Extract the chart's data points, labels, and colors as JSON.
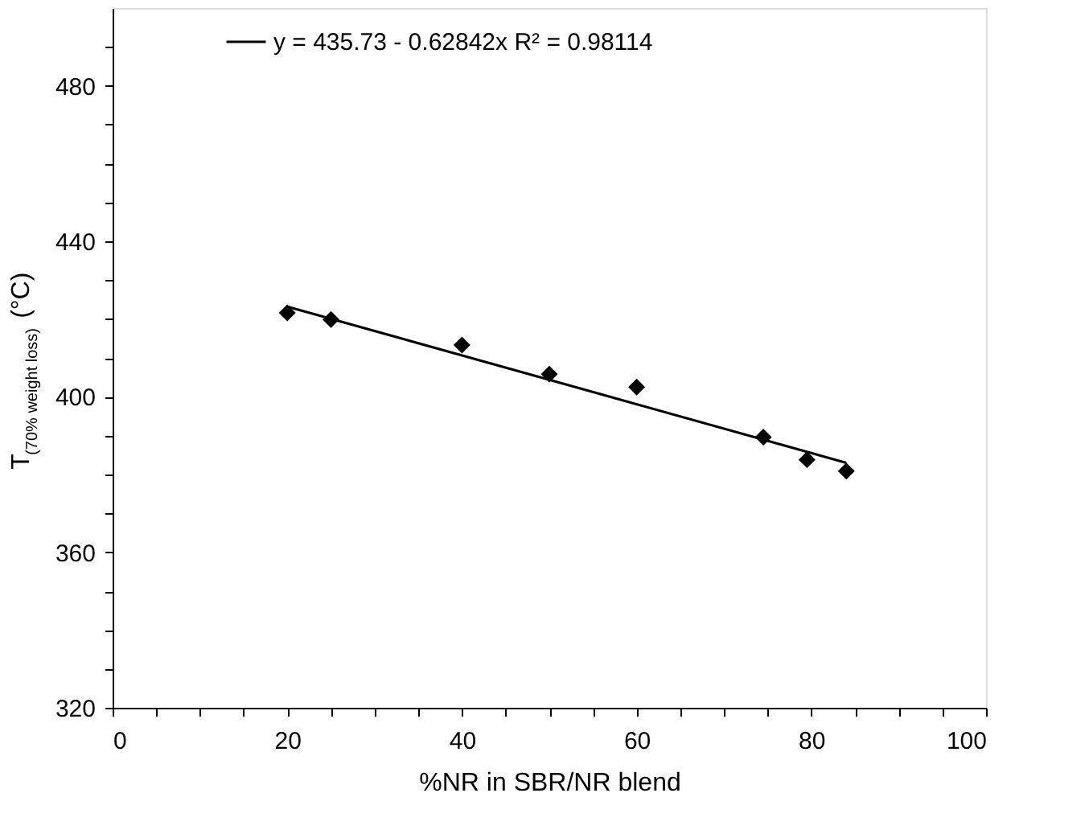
{
  "chart_data": {
    "type": "scatter",
    "xlabel": "%NR in SBR/NR blend",
    "ylabel": "T$_{(70% weight loss)}$ (°C)",
    "x": [
      20,
      25,
      40,
      50,
      60,
      74.5,
      79.5,
      84
    ],
    "series": [
      {
        "color": "#000000",
        "marker": "diamond",
        "values": [
          421.6,
          419.9,
          413.3,
          405.8,
          402.5,
          389.6,
          383.8,
          380.9
        ]
      },
      {
        "type": "line",
        "name": "y = 435.73 - 0.62842x   R² = 0.98114",
        "color": "#000000",
        "line_style": "solid",
        "x": [
          20,
          84
        ],
        "values": [
          423.2,
          383.0
        ]
      }
    ],
    "xlim": [
      0,
      100
    ],
    "xticks": [
      0,
      {
        "value": 5,
        "label": null
      },
      {
        "value": 10,
        "label": null
      },
      {
        "value": 15,
        "label": null
      },
      20,
      {
        "value": 25,
        "label": null
      },
      {
        "value": 30,
        "label": null
      },
      {
        "value": 35,
        "label": null
      },
      40,
      {
        "value": 45,
        "label": null
      },
      {
        "value": 50,
        "label": null
      },
      {
        "value": 55,
        "label": null
      },
      60,
      {
        "value": 65,
        "label": null
      },
      {
        "value": 70,
        "label": null
      },
      {
        "value": 75,
        "label": null
      },
      80,
      {
        "value": 85,
        "label": null
      },
      {
        "value": 90,
        "label": null
      },
      {
        "value": 95,
        "label": null
      },
      100
    ],
    "ylim": [
      320,
      500
    ],
    "yticks": [
      320,
      {
        "value": 330,
        "label": null
      },
      {
        "value": 340,
        "label": null
      },
      {
        "value": 350,
        "label": null
      },
      360,
      {
        "value": 370,
        "label": null
      },
      {
        "value": 380,
        "label": null
      },
      {
        "value": 390,
        "label": null
      },
      400,
      {
        "value": 410,
        "label": null
      },
      {
        "value": 420,
        "label": null
      },
      {
        "value": 430,
        "label": null
      },
      440,
      {
        "value": 450,
        "label": null
      },
      {
        "value": 460,
        "label": null
      },
      {
        "value": 470,
        "label": null
      },
      480,
      {
        "value": 490,
        "label": null
      }
    ],
    "grid": false,
    "legend": "top"
  }
}
